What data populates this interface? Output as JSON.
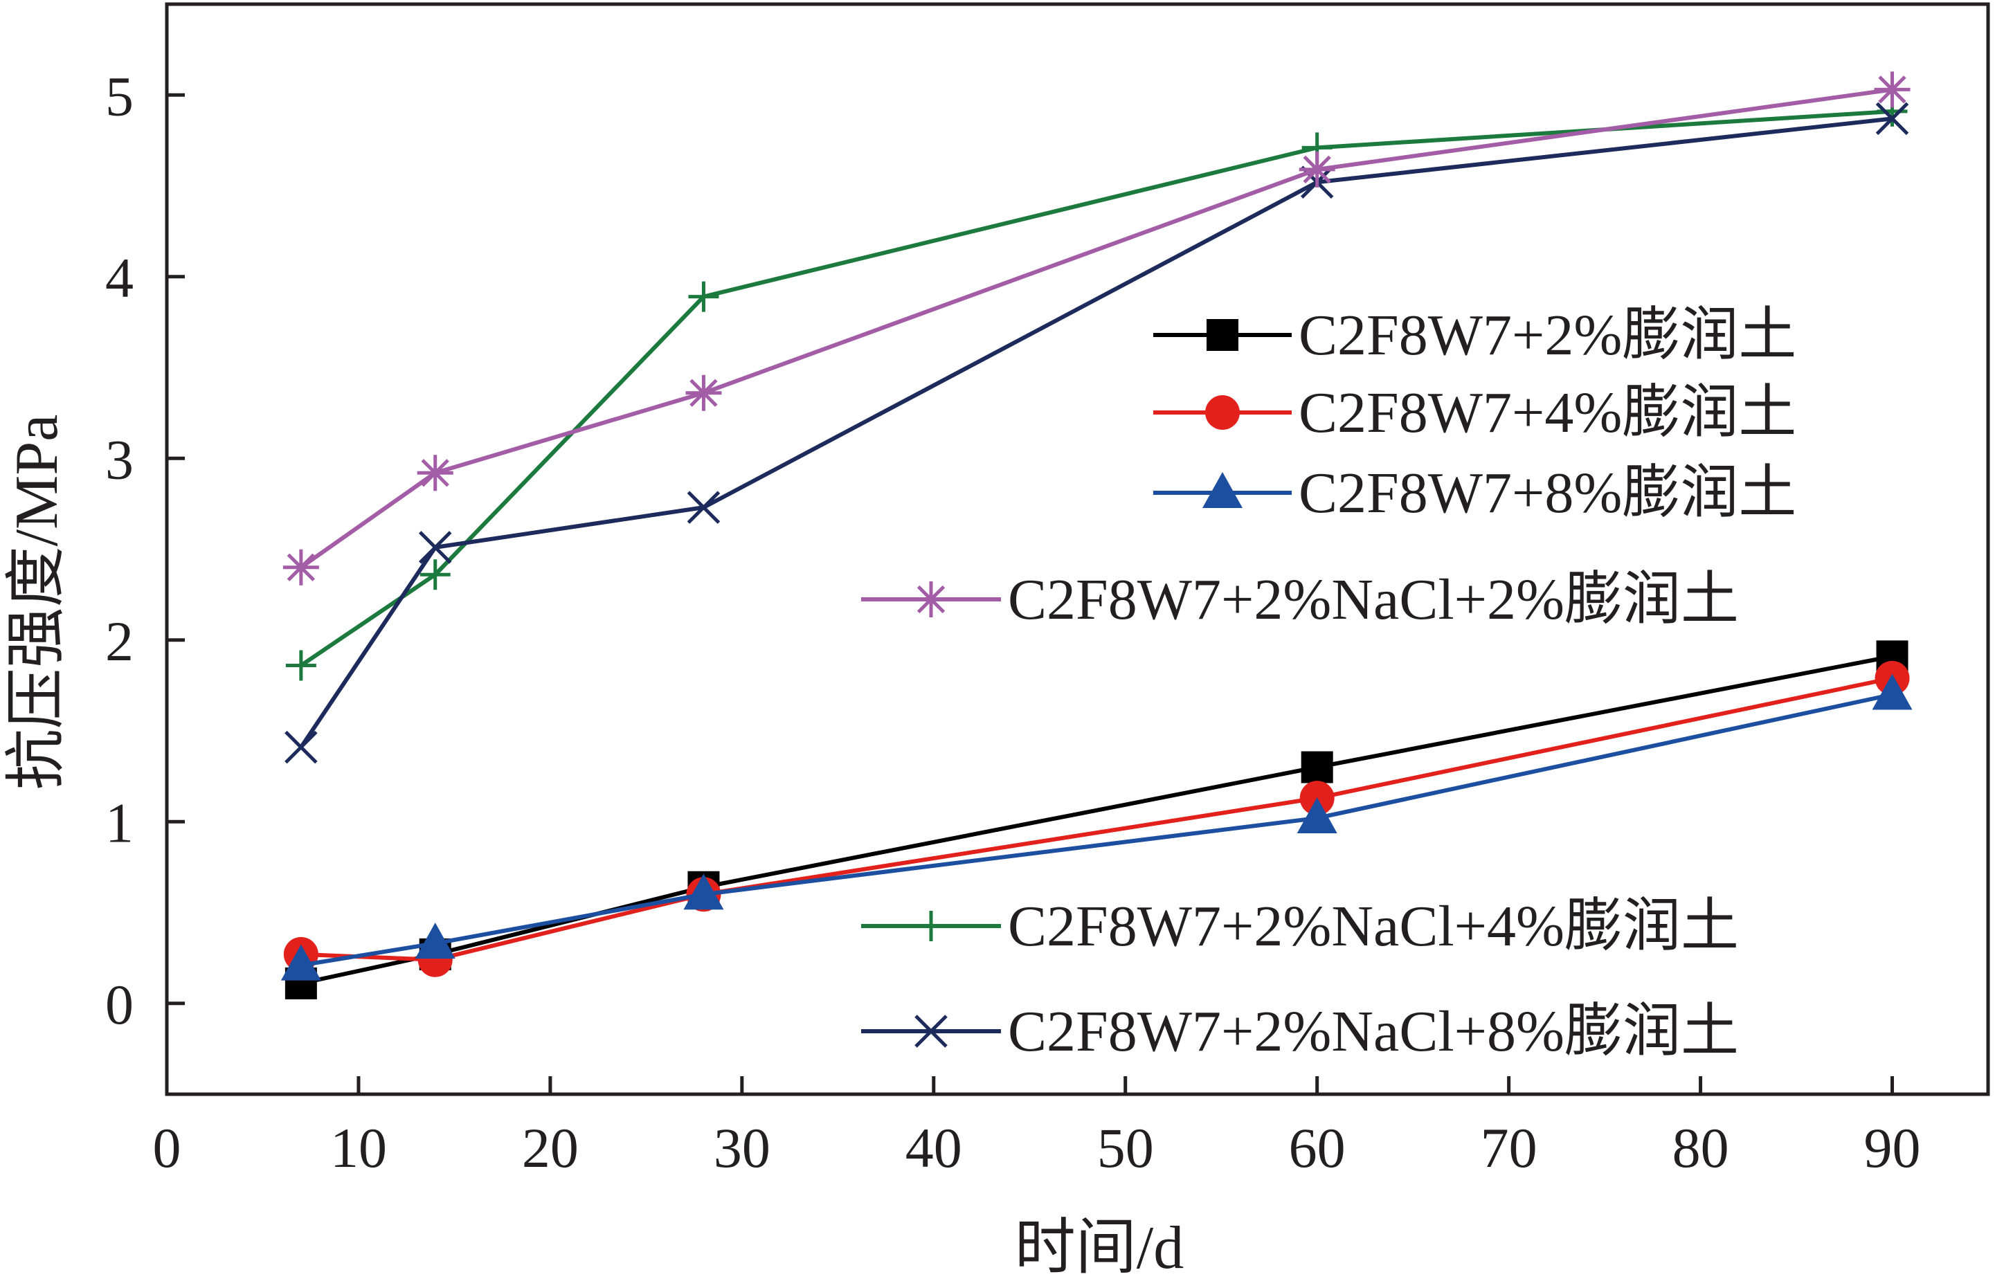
{
  "chart_data": {
    "type": "line",
    "xlabel": "时间/d",
    "ylabel": "抗压强度/MPa",
    "xlim": [
      0,
      95
    ],
    "ylim": [
      -0.5,
      5.5
    ],
    "xticks": [
      0,
      10,
      20,
      30,
      40,
      50,
      60,
      70,
      80,
      90
    ],
    "yticks": [
      0,
      1,
      2,
      3,
      4,
      5
    ],
    "grid": false,
    "legend_position": "right",
    "series": [
      {
        "name": "C2F8W7+2%膨润土",
        "color": "#000000",
        "marker": "square",
        "x": [
          7,
          14,
          28,
          60,
          90
        ],
        "y": [
          0.11,
          0.27,
          0.64,
          1.3,
          1.91
        ]
      },
      {
        "name": "C2F8W7+4%膨润土",
        "color": "#e3211c",
        "marker": "circle",
        "x": [
          7,
          14,
          28,
          60,
          90
        ],
        "y": [
          0.27,
          0.24,
          0.6,
          1.13,
          1.79
        ]
      },
      {
        "name": "C2F8W7+8%膨润土",
        "color": "#1d4fa0",
        "marker": "triangle",
        "x": [
          7,
          14,
          28,
          60,
          90
        ],
        "y": [
          0.21,
          0.33,
          0.6,
          1.02,
          1.7
        ]
      },
      {
        "name": "C2F8W7+2%NaCl+2%膨润土",
        "color": "#a35ca6",
        "marker": "asterisk",
        "x": [
          7,
          14,
          28,
          60,
          90
        ],
        "y": [
          2.4,
          2.92,
          3.36,
          4.59,
          5.03
        ]
      },
      {
        "name": "C2F8W7+2%NaCl+4%膨润土",
        "color": "#1c7a3e",
        "marker": "plus",
        "x": [
          7,
          14,
          28,
          60,
          90
        ],
        "y": [
          1.86,
          2.36,
          3.89,
          4.71,
          4.91
        ]
      },
      {
        "name": "C2F8W7+2%NaCl+8%膨润土",
        "color": "#1c2a5c",
        "marker": "x",
        "x": [
          7,
          14,
          28,
          60,
          90
        ],
        "y": [
          1.41,
          2.51,
          2.73,
          4.52,
          4.87
        ]
      }
    ]
  }
}
